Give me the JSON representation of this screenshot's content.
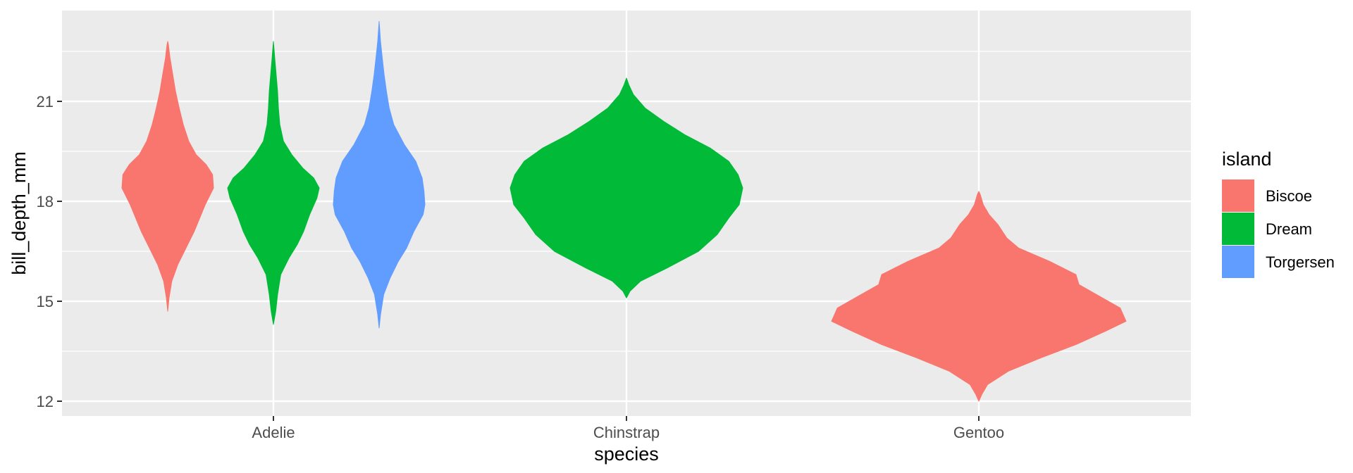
{
  "chart_data": {
    "type": "violin",
    "xlabel": "species",
    "ylabel": "bill_depth_mm",
    "categories": [
      "Adelie",
      "Chinstrap",
      "Gentoo"
    ],
    "yticks": [
      12,
      15,
      18,
      21
    ],
    "ylim": [
      11.5,
      23.7
    ],
    "grid": true,
    "legend": {
      "title": "island",
      "placement": "right",
      "entries": [
        {
          "name": "Biscoe",
          "color": "#F8766D"
        },
        {
          "name": "Dream",
          "color": "#00BA38"
        },
        {
          "name": "Torgersen",
          "color": "#619CFF"
        }
      ]
    },
    "violins": [
      {
        "species": "Adelie",
        "island": "Biscoe",
        "color": "#F8766D",
        "profile": [
          [
            14.7,
            0
          ],
          [
            15.1,
            0.03
          ],
          [
            15.6,
            0.09
          ],
          [
            16.1,
            0.22
          ],
          [
            16.6,
            0.4
          ],
          [
            17.1,
            0.58
          ],
          [
            17.5,
            0.7
          ],
          [
            17.9,
            0.82
          ],
          [
            18.4,
            1.0
          ],
          [
            18.8,
            0.98
          ],
          [
            19.1,
            0.84
          ],
          [
            19.4,
            0.62
          ],
          [
            19.8,
            0.46
          ],
          [
            20.3,
            0.34
          ],
          [
            20.8,
            0.25
          ],
          [
            21.3,
            0.17
          ],
          [
            21.8,
            0.11
          ],
          [
            22.3,
            0.05
          ],
          [
            22.7,
            0.015
          ],
          [
            22.8,
            0
          ]
        ]
      },
      {
        "species": "Adelie",
        "island": "Dream",
        "color": "#00BA38",
        "profile": [
          [
            14.3,
            0
          ],
          [
            14.7,
            0.05
          ],
          [
            15.2,
            0.09
          ],
          [
            15.8,
            0.16
          ],
          [
            16.3,
            0.34
          ],
          [
            16.7,
            0.52
          ],
          [
            17.1,
            0.66
          ],
          [
            17.6,
            0.79
          ],
          [
            18.1,
            0.95
          ],
          [
            18.4,
            1.0
          ],
          [
            18.7,
            0.88
          ],
          [
            19.0,
            0.64
          ],
          [
            19.4,
            0.4
          ],
          [
            19.8,
            0.22
          ],
          [
            20.3,
            0.14
          ],
          [
            20.8,
            0.11
          ],
          [
            21.3,
            0.09
          ],
          [
            21.8,
            0.06
          ],
          [
            22.3,
            0.03
          ],
          [
            22.8,
            0
          ]
        ]
      },
      {
        "species": "Adelie",
        "island": "Torgersen",
        "color": "#619CFF",
        "profile": [
          [
            14.2,
            0
          ],
          [
            14.6,
            0.03
          ],
          [
            15.2,
            0.1
          ],
          [
            15.7,
            0.24
          ],
          [
            16.2,
            0.42
          ],
          [
            16.6,
            0.6
          ],
          [
            17.1,
            0.76
          ],
          [
            17.6,
            0.96
          ],
          [
            17.9,
            1.0
          ],
          [
            18.3,
            0.98
          ],
          [
            18.7,
            0.94
          ],
          [
            19.2,
            0.8
          ],
          [
            19.7,
            0.55
          ],
          [
            20.3,
            0.32
          ],
          [
            20.8,
            0.22
          ],
          [
            21.3,
            0.16
          ],
          [
            21.8,
            0.11
          ],
          [
            22.3,
            0.07
          ],
          [
            22.8,
            0.03
          ],
          [
            23.4,
            0
          ]
        ]
      },
      {
        "species": "Chinstrap",
        "island": "Dream",
        "color": "#00BA38",
        "profile": [
          [
            15.1,
            0
          ],
          [
            15.3,
            0.03
          ],
          [
            15.6,
            0.12
          ],
          [
            16.0,
            0.35
          ],
          [
            16.5,
            0.62
          ],
          [
            17.0,
            0.78
          ],
          [
            17.5,
            0.88
          ],
          [
            17.9,
            0.97
          ],
          [
            18.4,
            1.0
          ],
          [
            18.8,
            0.96
          ],
          [
            19.2,
            0.88
          ],
          [
            19.6,
            0.72
          ],
          [
            20.0,
            0.5
          ],
          [
            20.4,
            0.32
          ],
          [
            20.8,
            0.16
          ],
          [
            21.2,
            0.06
          ],
          [
            21.5,
            0.02
          ],
          [
            21.7,
            0
          ]
        ]
      },
      {
        "species": "Gentoo",
        "island": "Biscoe",
        "color": "#F8766D",
        "profile": [
          [
            12.0,
            0
          ],
          [
            12.2,
            0.02
          ],
          [
            12.5,
            0.06
          ],
          [
            12.9,
            0.2
          ],
          [
            13.3,
            0.42
          ],
          [
            13.7,
            0.66
          ],
          [
            14.1,
            0.86
          ],
          [
            14.4,
            1.0
          ],
          [
            14.8,
            0.96
          ],
          [
            15.2,
            0.8
          ],
          [
            15.5,
            0.68
          ],
          [
            15.8,
            0.66
          ],
          [
            16.2,
            0.48
          ],
          [
            16.6,
            0.27
          ],
          [
            16.9,
            0.19
          ],
          [
            17.3,
            0.13
          ],
          [
            17.6,
            0.07
          ],
          [
            17.9,
            0.03
          ],
          [
            18.2,
            0.01
          ],
          [
            18.3,
            0
          ]
        ]
      }
    ]
  }
}
